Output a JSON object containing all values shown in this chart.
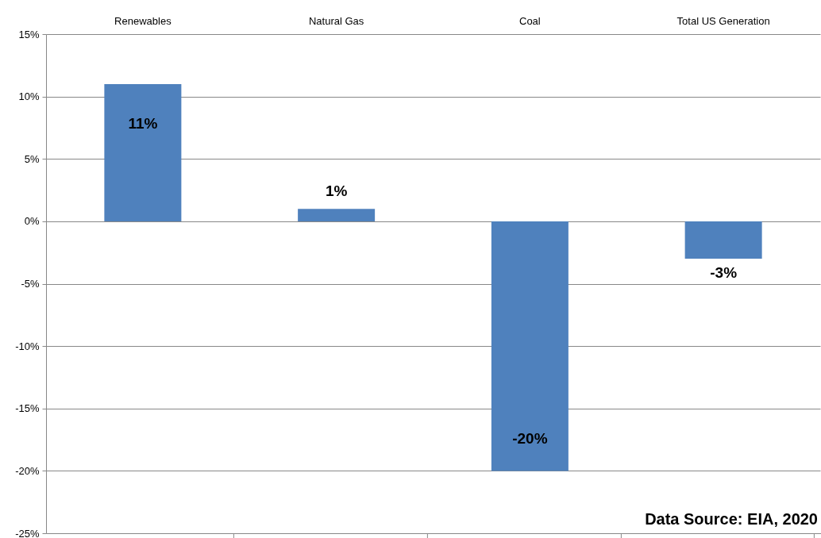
{
  "chart_data": {
    "type": "bar",
    "categories": [
      "Renewables",
      "Natural Gas",
      "Coal",
      "Total US Generation"
    ],
    "values": [
      11,
      1,
      -20,
      -3
    ],
    "color": "#4f81bd",
    "value_labels": [
      "11%",
      "1%",
      "-20%",
      "-3%"
    ],
    "ylim": [
      -25,
      15
    ],
    "yticks": [
      {
        "value": 15,
        "label": "15%"
      },
      {
        "value": 10,
        "label": "10%"
      },
      {
        "value": 5,
        "label": "5%"
      },
      {
        "value": 0,
        "label": "0%"
      },
      {
        "value": -5,
        "label": "-5%"
      },
      {
        "value": -10,
        "label": "-10%"
      },
      {
        "value": -15,
        "label": "-15%"
      },
      {
        "value": -20,
        "label": "-20%"
      },
      {
        "value": -25,
        "label": "-25%"
      }
    ],
    "grid": "y",
    "annotations": [
      "Data Source: EIA, 2020"
    ]
  }
}
